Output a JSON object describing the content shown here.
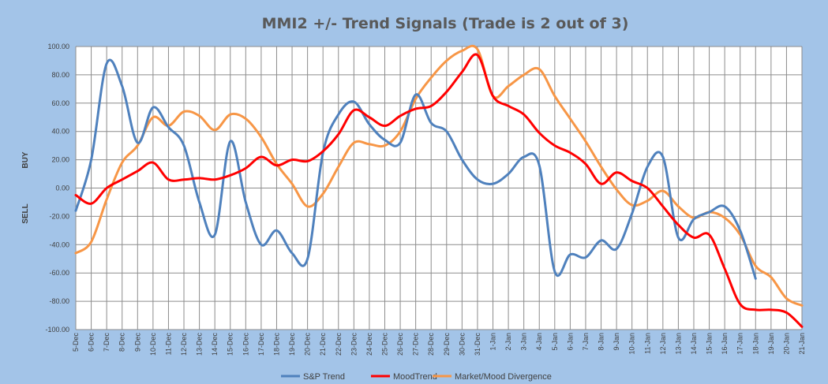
{
  "chart_data": {
    "type": "line",
    "title": "MMI2 +/- Trend Signals (Trade is 2 out of 3)",
    "ylabel_top": "BUY",
    "ylabel_bottom": "SELL",
    "ylim": [
      -100,
      100
    ],
    "ytick_step": 20,
    "grid": true,
    "legend_position": "bottom",
    "categories": [
      "5-Dec",
      "6-Dec",
      "7-Dec",
      "8-Dec",
      "9-Dec",
      "10-Dec",
      "11-Dec",
      "12-Dec",
      "13-Dec",
      "14-Dec",
      "15-Dec",
      "16-Dec",
      "17-Dec",
      "18-Dec",
      "19-Dec",
      "20-Dec",
      "21-Dec",
      "22-Dec",
      "23-Dec",
      "24-Dec",
      "25-Dec",
      "26-Dec",
      "27-Dec",
      "28-Dec",
      "29-Dec",
      "30-Dec",
      "31-Dec",
      "1-Jan",
      "2-Jan",
      "3-Jan",
      "4-Jan",
      "5-Jan",
      "6-Jan",
      "7-Jan",
      "8-Jan",
      "9-Jan",
      "10-Jan",
      "11-Jan",
      "12-Jan",
      "13-Jan",
      "14-Jan",
      "15-Jan",
      "16-Jan",
      "17-Jan",
      "18-Jan",
      "19-Jan",
      "20-Jan",
      "21-Jan"
    ],
    "series": [
      {
        "name": "S&P Trend",
        "color": "#4f81bd",
        "values": [
          -16,
          20,
          88,
          72,
          32,
          57,
          43,
          30,
          -10,
          -33,
          33,
          -10,
          -40,
          -30,
          -46,
          -50,
          25,
          52,
          61,
          45,
          34,
          32,
          66,
          46,
          40,
          20,
          6,
          3,
          10,
          22,
          16,
          -59,
          -47,
          -49,
          -37,
          -43,
          -18,
          15,
          22,
          -35,
          -22,
          -17,
          -13,
          -30,
          -64,
          null,
          null,
          null
        ]
      },
      {
        "name": "MoodTrend",
        "color": "#ff0000",
        "values": [
          -5,
          -11,
          0,
          6,
          12,
          18,
          6,
          6,
          7,
          6,
          9,
          14,
          22,
          16,
          20,
          19,
          26,
          38,
          55,
          50,
          44,
          51,
          56,
          58,
          68,
          82,
          94,
          65,
          58,
          52,
          39,
          30,
          25,
          17,
          3,
          11,
          5,
          0,
          -13,
          -26,
          -35,
          -33,
          -57,
          -82,
          -86,
          -86,
          -88,
          -98
        ]
      },
      {
        "name": "Market/Mood Divergence",
        "color": "#f79646",
        "values": [
          -46,
          -38,
          -8,
          18,
          30,
          50,
          44,
          54,
          51,
          41,
          52,
          49,
          36,
          17,
          3,
          -13,
          -4,
          15,
          32,
          31,
          30,
          40,
          63,
          78,
          90,
          97,
          98,
          65,
          72,
          80,
          84,
          65,
          49,
          33,
          15,
          -1,
          -12,
          -9,
          -2,
          -13,
          -21,
          -17,
          -21,
          -33,
          -55,
          -63,
          -78,
          -83
        ]
      }
    ]
  }
}
